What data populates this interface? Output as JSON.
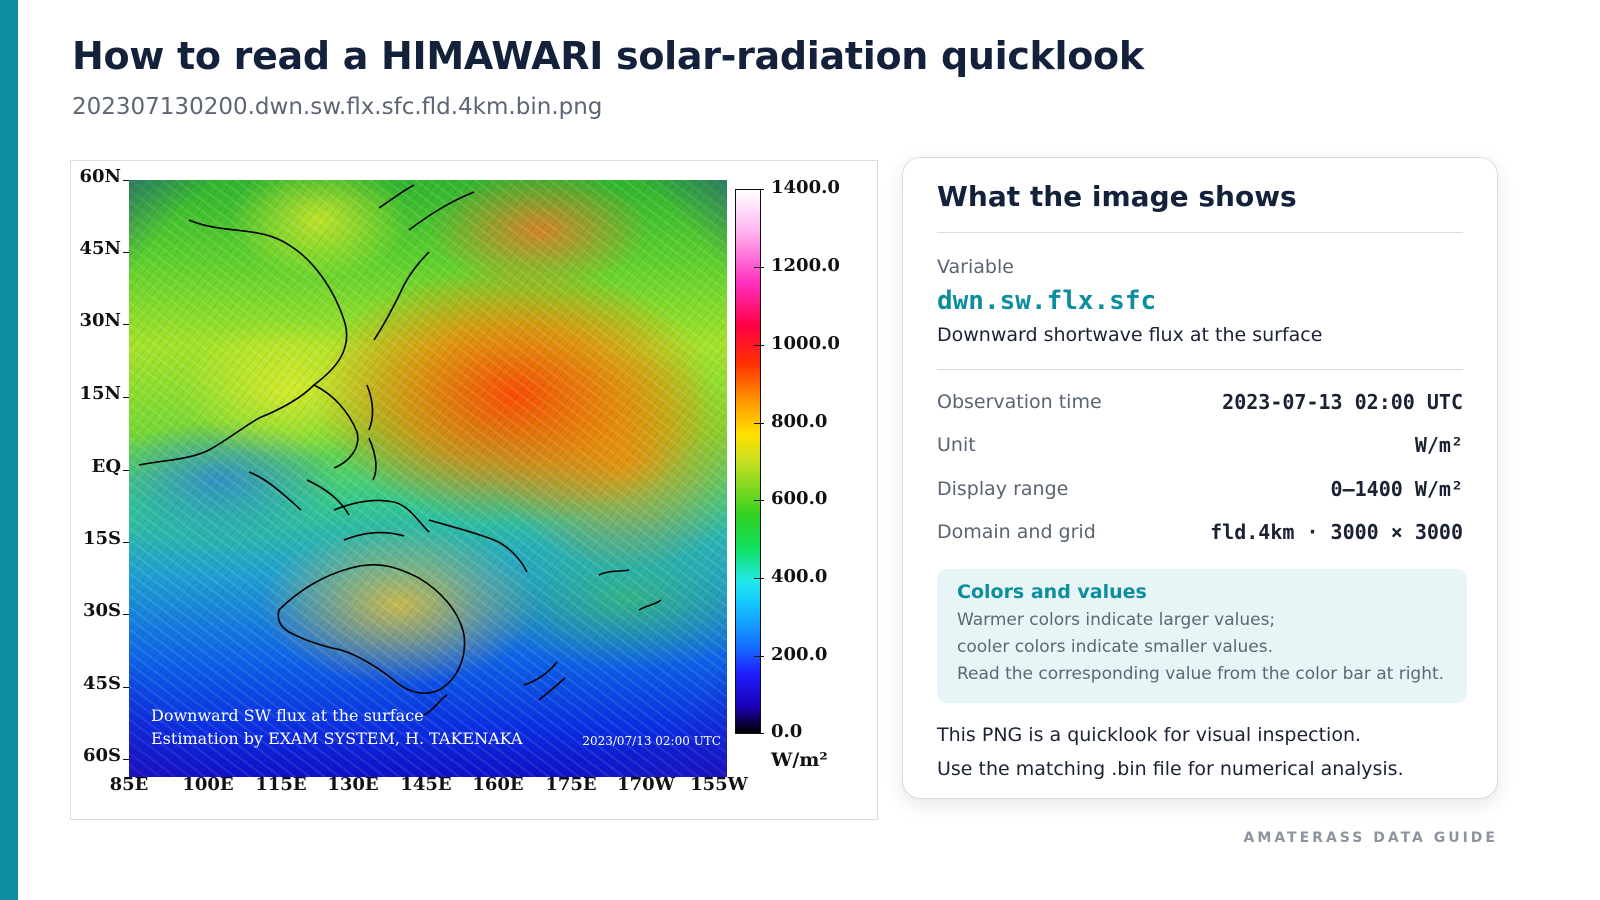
{
  "page": {
    "title": "How to read a HIMAWARI solar-radiation quicklook",
    "subtitle": "202307130200.dwn.sw.flx.sfc.fld.4km.bin.png",
    "brand": "AMATERASS DATA GUIDE",
    "accent_color": "#0d8e9e"
  },
  "figure": {
    "lat_labels": [
      "60N",
      "45N",
      "30N",
      "15N",
      "EQ",
      "15S",
      "30S",
      "45S",
      "60S"
    ],
    "lon_labels": [
      "85E",
      "100E",
      "115E",
      "130E",
      "145E",
      "160E",
      "175E",
      "170W",
      "155W"
    ],
    "colorbar_labels": [
      "1400.0",
      "1200.0",
      "1000.0",
      "800.0",
      "600.0",
      "400.0",
      "200.0",
      "0.0"
    ],
    "colorbar_unit": "W/m²",
    "colorbar_range": [
      0,
      1400
    ],
    "caption_line1": "Downward SW flux at the surface",
    "caption_line2": "Estimation by EXAM SYSTEM,  H. TAKENAKA",
    "timestamp": "2023/07/13 02:00 UTC"
  },
  "card": {
    "title": "What the image shows",
    "variable_label": "Variable",
    "variable_code": "dwn.sw.flx.sfc",
    "variable_desc": "Downward shortwave flux at the surface",
    "details": [
      {
        "label": "Observation time",
        "value": "2023-07-13 02:00 UTC"
      },
      {
        "label": "Unit",
        "value": "W/m²"
      },
      {
        "label": "Display range",
        "value": "0–1400 W/m²"
      },
      {
        "label": "Domain and grid",
        "value": "fld.4km · 3000 × 3000"
      }
    ],
    "note": {
      "title": "Colors and values",
      "lines": [
        "Warmer colors indicate larger values;",
        "cooler colors indicate smaller values.",
        "Read the corresponding value from the color bar at right."
      ]
    },
    "footer_lines": [
      "This PNG is a quicklook for visual inspection.",
      "Use the matching .bin file for numerical analysis."
    ]
  }
}
